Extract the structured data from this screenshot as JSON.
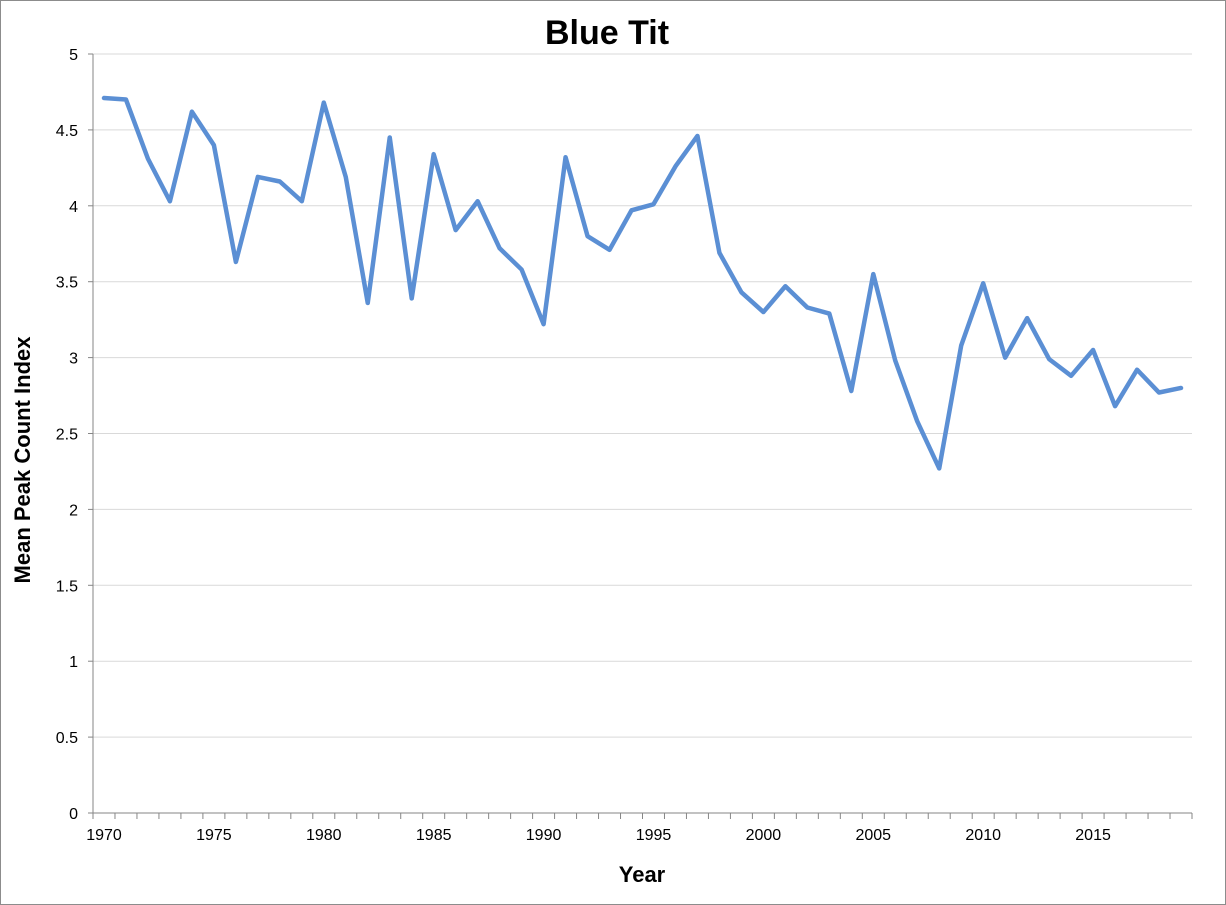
{
  "chart_data": {
    "type": "line",
    "title": "Blue Tit",
    "xlabel": "Year",
    "ylabel": "Mean Peak Count Index",
    "xlim": [
      1970,
      2019
    ],
    "ylim": [
      0,
      5
    ],
    "x_ticks": [
      "1970",
      "1975",
      "1980",
      "1985",
      "1990",
      "1995",
      "2000",
      "2005",
      "2010",
      "2015"
    ],
    "y_ticks": [
      "0",
      "0.5",
      "1",
      "1.5",
      "2",
      "2.5",
      "3",
      "3.5",
      "4",
      "4.5",
      "5"
    ],
    "grid": true,
    "legend": "none",
    "line_color": "#5b8fd4",
    "x": [
      1970,
      1971,
      1972,
      1973,
      1974,
      1975,
      1976,
      1977,
      1978,
      1979,
      1980,
      1981,
      1982,
      1983,
      1984,
      1985,
      1986,
      1987,
      1988,
      1989,
      1990,
      1991,
      1992,
      1993,
      1994,
      1995,
      1996,
      1997,
      1998,
      1999,
      2000,
      2001,
      2002,
      2003,
      2004,
      2005,
      2006,
      2007,
      2008,
      2009,
      2010,
      2011,
      2012,
      2013,
      2014,
      2015,
      2016,
      2017,
      2018,
      2019
    ],
    "series": [
      {
        "values": [
          4.71,
          4.7,
          4.31,
          4.03,
          4.62,
          4.4,
          3.63,
          4.19,
          4.16,
          4.03,
          4.68,
          4.19,
          3.36,
          4.45,
          3.39,
          4.34,
          3.84,
          4.03,
          3.72,
          3.58,
          3.22,
          4.32,
          3.8,
          3.71,
          3.97,
          4.01,
          4.26,
          4.46,
          3.69,
          3.43,
          3.3,
          3.47,
          3.33,
          3.29,
          2.78,
          3.55,
          2.98,
          2.58,
          2.27,
          3.08,
          3.49,
          3.0,
          3.26,
          2.99,
          2.88,
          3.05,
          2.68,
          2.92,
          2.77,
          2.8
        ]
      }
    ]
  }
}
